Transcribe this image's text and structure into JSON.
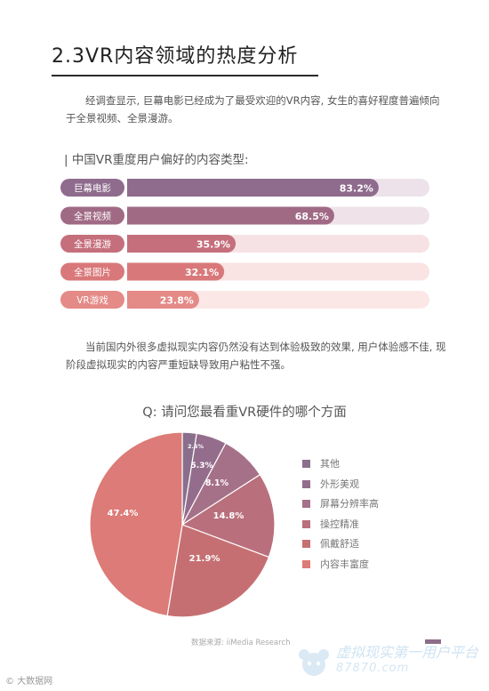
{
  "page": {
    "title": "2.3VR内容领域的热度分析",
    "paragraph1": "经调查显示, 巨幕电影已经成为了最受欢迎的VR内容, 女生的喜好程度普遍倾向于全景视频、全景漫游。",
    "bar_title": "| 中国VR重度用户偏好的内容类型:",
    "paragraph2": "当前国内外很多虚拟现实内容仍然没有达到体验极致的效果, 用户体验感不佳, 现阶段虚拟现实的内容严重短缺导致用户粘性不强。",
    "pie_title": "Q: 请问您最看重VR硬件的哪个方面",
    "source": "数据来源: iiMedia Research",
    "watermark_right": "虚拟现实第一用户平台",
    "watermark_site": "87870.com",
    "watermark_left": "© 大数据网"
  },
  "chart_data": [
    {
      "type": "bar",
      "orientation": "horizontal",
      "title": "| 中国VR重度用户偏好的内容类型:",
      "categories": [
        "巨幕电影",
        "全景视频",
        "全景漫游",
        "全景图片",
        "VR游戏"
      ],
      "values": [
        83.2,
        68.5,
        35.9,
        32.1,
        23.8
      ],
      "value_labels": [
        "83.2%",
        "68.5%",
        "35.9%",
        "32.1%",
        "23.8%"
      ],
      "xlim": [
        0,
        100
      ],
      "colors": [
        "#8f6b8d",
        "#a06a85",
        "#c56f7c",
        "#d9787a",
        "#e48a87"
      ],
      "track_colors": [
        "#ede2ea",
        "#efe3e9",
        "#f6e2e4",
        "#f9e3e3",
        "#fbe7e6"
      ]
    },
    {
      "type": "pie",
      "title": "Q: 请问您最看重VR硬件的哪个方面",
      "labels": [
        "其他",
        "外形美观",
        "屏幕分辨率高",
        "操控精准",
        "佩戴舒适",
        "内容丰富度"
      ],
      "values": [
        2.5,
        5.3,
        8.1,
        14.8,
        21.9,
        47.4
      ],
      "value_labels": [
        "2.5%",
        "5.3%",
        "8.1%",
        "14.8%",
        "21.9%",
        "47.4%"
      ],
      "colors": [
        "#8a6f8c",
        "#946d8c",
        "#a57188",
        "#b9707c",
        "#c66f72",
        "#dc7b77"
      ],
      "legend_position": "right"
    }
  ]
}
